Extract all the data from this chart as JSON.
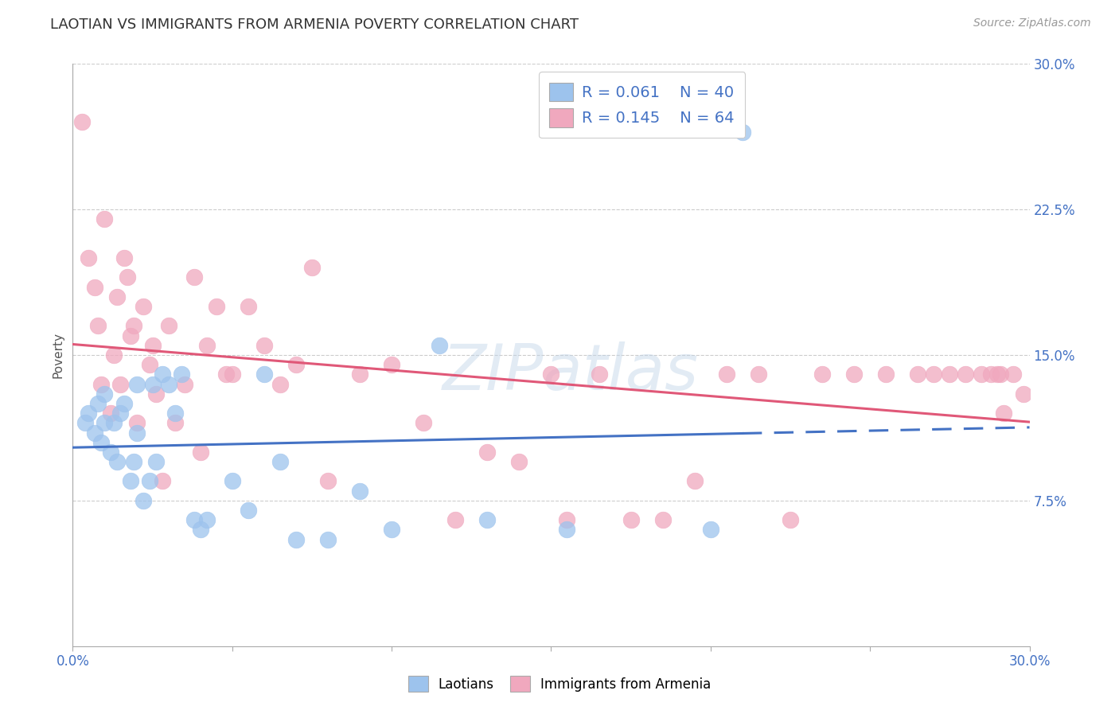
{
  "title": "LAOTIAN VS IMMIGRANTS FROM ARMENIA POVERTY CORRELATION CHART",
  "source": "Source: ZipAtlas.com",
  "ylabel": "Poverty",
  "y_tick_labels": [
    "",
    "7.5%",
    "15.0%",
    "22.5%",
    "30.0%"
  ],
  "y_tick_values": [
    0.0,
    0.075,
    0.15,
    0.225,
    0.3
  ],
  "x_range": [
    0.0,
    0.3
  ],
  "y_range": [
    0.0,
    0.3
  ],
  "legend_laotian_R": "0.061",
  "legend_laotian_N": "40",
  "legend_armenia_R": "0.145",
  "legend_armenia_N": "64",
  "laotian_color": "#9dc3ed",
  "armenia_color": "#f0a8be",
  "laotian_line_color": "#4472c4",
  "armenia_line_color": "#e05878",
  "background_color": "#ffffff",
  "grid_color": "#cccccc",
  "laotian_x": [
    0.004,
    0.005,
    0.007,
    0.008,
    0.009,
    0.01,
    0.01,
    0.012,
    0.013,
    0.014,
    0.015,
    0.016,
    0.018,
    0.019,
    0.02,
    0.02,
    0.022,
    0.024,
    0.025,
    0.026,
    0.028,
    0.03,
    0.032,
    0.034,
    0.038,
    0.04,
    0.042,
    0.05,
    0.055,
    0.06,
    0.065,
    0.07,
    0.08,
    0.09,
    0.1,
    0.115,
    0.13,
    0.155,
    0.2,
    0.21
  ],
  "laotian_y": [
    0.115,
    0.12,
    0.11,
    0.125,
    0.105,
    0.13,
    0.115,
    0.1,
    0.115,
    0.095,
    0.12,
    0.125,
    0.085,
    0.095,
    0.11,
    0.135,
    0.075,
    0.085,
    0.135,
    0.095,
    0.14,
    0.135,
    0.12,
    0.14,
    0.065,
    0.06,
    0.065,
    0.085,
    0.07,
    0.14,
    0.095,
    0.055,
    0.055,
    0.08,
    0.06,
    0.155,
    0.065,
    0.06,
    0.06,
    0.265
  ],
  "armenia_x": [
    0.003,
    0.005,
    0.007,
    0.008,
    0.009,
    0.01,
    0.012,
    0.013,
    0.014,
    0.015,
    0.016,
    0.017,
    0.018,
    0.019,
    0.02,
    0.022,
    0.024,
    0.025,
    0.026,
    0.028,
    0.03,
    0.032,
    0.035,
    0.038,
    0.04,
    0.042,
    0.045,
    0.048,
    0.05,
    0.055,
    0.06,
    0.065,
    0.07,
    0.075,
    0.08,
    0.09,
    0.1,
    0.11,
    0.12,
    0.13,
    0.14,
    0.15,
    0.155,
    0.165,
    0.175,
    0.185,
    0.195,
    0.205,
    0.215,
    0.225,
    0.235,
    0.245,
    0.255,
    0.265,
    0.27,
    0.275,
    0.28,
    0.285,
    0.288,
    0.29,
    0.291,
    0.292,
    0.295,
    0.298
  ],
  "armenia_y": [
    0.27,
    0.2,
    0.185,
    0.165,
    0.135,
    0.22,
    0.12,
    0.15,
    0.18,
    0.135,
    0.2,
    0.19,
    0.16,
    0.165,
    0.115,
    0.175,
    0.145,
    0.155,
    0.13,
    0.085,
    0.165,
    0.115,
    0.135,
    0.19,
    0.1,
    0.155,
    0.175,
    0.14,
    0.14,
    0.175,
    0.155,
    0.135,
    0.145,
    0.195,
    0.085,
    0.14,
    0.145,
    0.115,
    0.065,
    0.1,
    0.095,
    0.14,
    0.065,
    0.14,
    0.065,
    0.065,
    0.085,
    0.14,
    0.14,
    0.065,
    0.14,
    0.14,
    0.14,
    0.14,
    0.14,
    0.14,
    0.14,
    0.14,
    0.14,
    0.14,
    0.14,
    0.12,
    0.14,
    0.13
  ],
  "lao_line_x0": 0.0,
  "lao_line_x_solid_end": 0.21,
  "lao_line_x1": 0.3,
  "arm_line_x0": 0.0,
  "arm_line_x1": 0.3
}
